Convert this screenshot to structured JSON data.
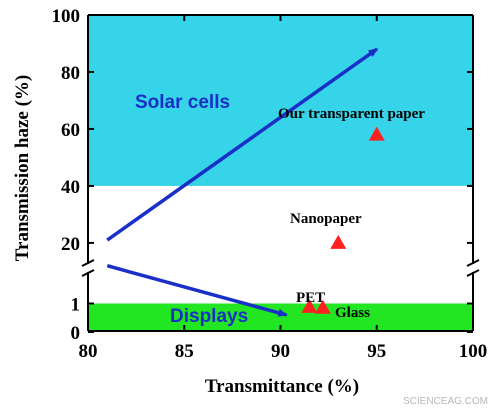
{
  "chart_data": {
    "type": "scatter",
    "xlabel": "Transmittance (%)",
    "ylabel": "Transmission haze (%)",
    "xlim": [
      80,
      100
    ],
    "x_ticks": [
      "80",
      "85",
      "90",
      "95",
      "100"
    ],
    "y_axis": {
      "scale": "broken",
      "upper_range": [
        10,
        100
      ],
      "lower_range": [
        0,
        1.5
      ],
      "upper_ticks": [
        "20",
        "40",
        "60",
        "80",
        "100"
      ],
      "lower_ticks": [
        "0",
        "1"
      ]
    },
    "regions": [
      {
        "label": "Solar cells",
        "haze_range": [
          40,
          100
        ],
        "color": "#35d4e8",
        "label_color": "#1a2fc8"
      },
      {
        "label": "Displays",
        "haze_range": [
          0,
          1
        ],
        "color": "#22e622",
        "label_color": "#1a2fc8"
      }
    ],
    "points": [
      {
        "label": "Our transparent paper",
        "x": 95,
        "y": 58
      },
      {
        "label": "Nanopaper",
        "x": 93,
        "y": 20
      },
      {
        "label": "PET",
        "x": 91.5,
        "y": 0.88
      },
      {
        "label": "Glass",
        "x": 92.2,
        "y": 0.85
      }
    ],
    "arrows": [
      {
        "from": [
          81,
          21
        ],
        "to": [
          95,
          88
        ]
      },
      {
        "from": [
          81,
          12
        ],
        "to": [
          90.3,
          0.6
        ]
      }
    ],
    "marker_color": "#ff2020",
    "arrow_color": "#1a2fc8",
    "grid": false
  },
  "watermark": "SCIENCEAG.COM"
}
